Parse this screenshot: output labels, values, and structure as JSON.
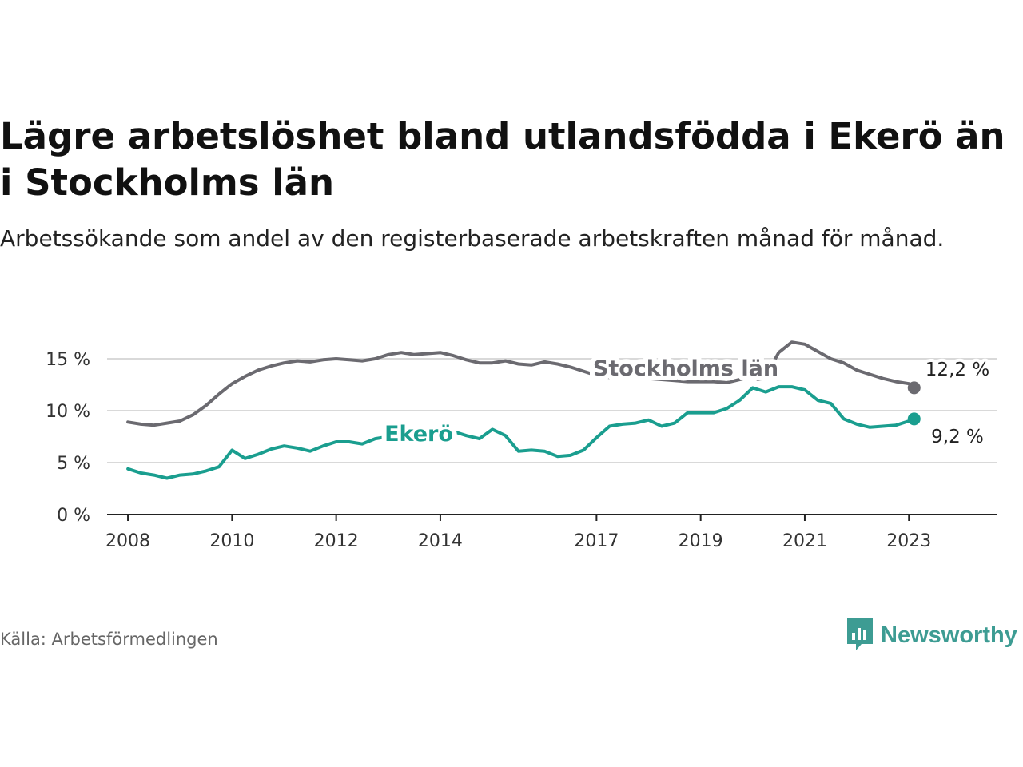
{
  "title": "Lägre arbetslöshet bland utlandsfödda i Ekerö än i Stockholms län",
  "subtitle": "Arbetssökande som andel av den registerbaserade arbetskraften månad för månad.",
  "source": "Källa: Arbetsförmedlingen",
  "brand": "Newsworthy",
  "colors": {
    "stockholm": "#6b6a70",
    "ekero": "#1a9e8f",
    "grid": "#d9d9d9",
    "axis": "#222222",
    "brand": "#3d9c93"
  },
  "chart_data": {
    "type": "line",
    "title": "Lägre arbetslöshet bland utlandsfödda i Ekerö än i Stockholms län",
    "xlabel": "",
    "ylabel": "",
    "ylim": [
      0,
      15
    ],
    "xlim": [
      2007.6,
      2024.7
    ],
    "y_ticks": [
      {
        "value": 0,
        "label": "0 %"
      },
      {
        "value": 5,
        "label": "5 %"
      },
      {
        "value": 10,
        "label": "10 %"
      },
      {
        "value": 15,
        "label": "15 %"
      }
    ],
    "x_ticks": [
      {
        "value": 2008,
        "label": "2008"
      },
      {
        "value": 2010,
        "label": "2010"
      },
      {
        "value": 2012,
        "label": "2012"
      },
      {
        "value": 2014,
        "label": "2014"
      },
      {
        "value": 2017,
        "label": "2017"
      },
      {
        "value": 2019,
        "label": "2019"
      },
      {
        "value": 2021,
        "label": "2021"
      },
      {
        "value": 2023,
        "label": "2023"
      }
    ],
    "series": [
      {
        "name": "Stockholms län",
        "end_label": "12,2 %",
        "points": [
          [
            2008.0,
            8.9
          ],
          [
            2008.25,
            8.7
          ],
          [
            2008.5,
            8.6
          ],
          [
            2008.75,
            8.8
          ],
          [
            2009.0,
            9.0
          ],
          [
            2009.25,
            9.6
          ],
          [
            2009.5,
            10.5
          ],
          [
            2009.75,
            11.6
          ],
          [
            2010.0,
            12.6
          ],
          [
            2010.25,
            13.3
          ],
          [
            2010.5,
            13.9
          ],
          [
            2010.75,
            14.3
          ],
          [
            2011.0,
            14.6
          ],
          [
            2011.25,
            14.8
          ],
          [
            2011.5,
            14.7
          ],
          [
            2011.75,
            14.9
          ],
          [
            2012.0,
            15.0
          ],
          [
            2012.25,
            14.9
          ],
          [
            2012.5,
            14.8
          ],
          [
            2012.75,
            15.0
          ],
          [
            2013.0,
            15.4
          ],
          [
            2013.25,
            15.6
          ],
          [
            2013.5,
            15.4
          ],
          [
            2013.75,
            15.5
          ],
          [
            2014.0,
            15.6
          ],
          [
            2014.25,
            15.3
          ],
          [
            2014.5,
            14.9
          ],
          [
            2014.75,
            14.6
          ],
          [
            2015.0,
            14.6
          ],
          [
            2015.25,
            14.8
          ],
          [
            2015.5,
            14.5
          ],
          [
            2015.75,
            14.4
          ],
          [
            2016.0,
            14.7
          ],
          [
            2016.25,
            14.5
          ],
          [
            2016.5,
            14.2
          ],
          [
            2016.75,
            13.8
          ],
          [
            2017.0,
            13.4
          ],
          [
            2017.25,
            13.2
          ],
          [
            2017.5,
            13.2
          ],
          [
            2017.75,
            13.3
          ],
          [
            2018.0,
            13.1
          ],
          [
            2018.25,
            13.0
          ],
          [
            2018.5,
            12.9
          ],
          [
            2018.75,
            12.8
          ],
          [
            2019.0,
            12.8
          ],
          [
            2019.25,
            12.8
          ],
          [
            2019.5,
            12.7
          ],
          [
            2019.75,
            13.0
          ],
          [
            2020.0,
            13.3
          ],
          [
            2020.1,
            13.0
          ],
          [
            2020.2,
            13.1
          ],
          [
            2020.3,
            13.8
          ],
          [
            2020.5,
            15.6
          ],
          [
            2020.75,
            16.6
          ],
          [
            2021.0,
            16.4
          ],
          [
            2021.25,
            15.7
          ],
          [
            2021.5,
            15.0
          ],
          [
            2021.75,
            14.6
          ],
          [
            2022.0,
            13.9
          ],
          [
            2022.25,
            13.5
          ],
          [
            2022.5,
            13.1
          ],
          [
            2022.75,
            12.8
          ],
          [
            2023.0,
            12.6
          ],
          [
            2023.1,
            12.2
          ]
        ]
      },
      {
        "name": "Ekerö",
        "end_label": "9,2 %",
        "points": [
          [
            2008.0,
            4.4
          ],
          [
            2008.25,
            4.0
          ],
          [
            2008.5,
            3.8
          ],
          [
            2008.75,
            3.5
          ],
          [
            2009.0,
            3.8
          ],
          [
            2009.25,
            3.9
          ],
          [
            2009.5,
            4.2
          ],
          [
            2009.75,
            4.6
          ],
          [
            2010.0,
            6.2
          ],
          [
            2010.25,
            5.4
          ],
          [
            2010.5,
            5.8
          ],
          [
            2010.75,
            6.3
          ],
          [
            2011.0,
            6.6
          ],
          [
            2011.25,
            6.4
          ],
          [
            2011.5,
            6.1
          ],
          [
            2011.75,
            6.6
          ],
          [
            2012.0,
            7.0
          ],
          [
            2012.25,
            7.0
          ],
          [
            2012.5,
            6.8
          ],
          [
            2012.75,
            7.3
          ],
          [
            2013.0,
            7.5
          ],
          [
            2013.25,
            7.7
          ],
          [
            2013.5,
            7.9
          ],
          [
            2013.75,
            8.1
          ],
          [
            2014.0,
            8.2
          ],
          [
            2014.25,
            8.0
          ],
          [
            2014.5,
            7.6
          ],
          [
            2014.75,
            7.3
          ],
          [
            2015.0,
            8.2
          ],
          [
            2015.25,
            7.6
          ],
          [
            2015.5,
            6.1
          ],
          [
            2015.75,
            6.2
          ],
          [
            2016.0,
            6.1
          ],
          [
            2016.25,
            5.6
          ],
          [
            2016.5,
            5.7
          ],
          [
            2016.75,
            6.2
          ],
          [
            2017.0,
            7.4
          ],
          [
            2017.25,
            8.5
          ],
          [
            2017.5,
            8.7
          ],
          [
            2017.75,
            8.8
          ],
          [
            2018.0,
            9.1
          ],
          [
            2018.25,
            8.5
          ],
          [
            2018.5,
            8.8
          ],
          [
            2018.75,
            9.8
          ],
          [
            2019.0,
            9.8
          ],
          [
            2019.25,
            9.8
          ],
          [
            2019.5,
            10.2
          ],
          [
            2019.75,
            11.0
          ],
          [
            2020.0,
            12.2
          ],
          [
            2020.25,
            11.8
          ],
          [
            2020.5,
            12.3
          ],
          [
            2020.75,
            12.3
          ],
          [
            2021.0,
            12.0
          ],
          [
            2021.25,
            11.0
          ],
          [
            2021.5,
            10.7
          ],
          [
            2021.75,
            9.2
          ],
          [
            2022.0,
            8.7
          ],
          [
            2022.25,
            8.4
          ],
          [
            2022.5,
            8.5
          ],
          [
            2022.75,
            8.6
          ],
          [
            2023.0,
            9.0
          ],
          [
            2023.1,
            9.2
          ]
        ]
      }
    ]
  }
}
